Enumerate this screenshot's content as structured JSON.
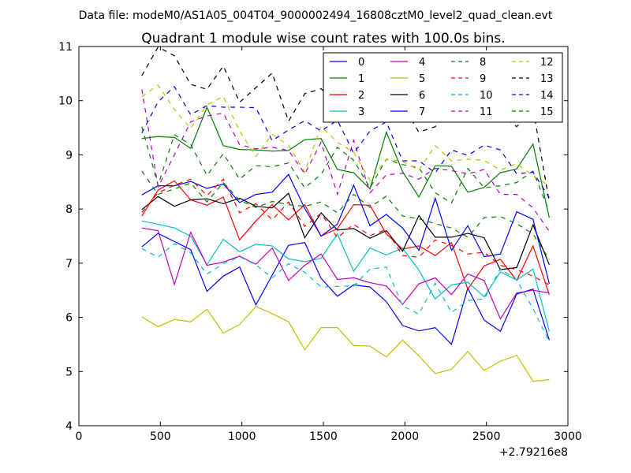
{
  "figure": {
    "suptitle": "Data file: modeM0/AS1A05_004T04_9000002494_16808cztM0_level2_quad_clean.evt"
  },
  "chart_data": {
    "type": "line",
    "title": "Quadrant 1 module wise count rates with 100.0s bins.",
    "xlabel": "",
    "ylabel": "",
    "xlim": [
      0,
      3000
    ],
    "ylim": [
      4,
      11
    ],
    "x_offset_label": "+2.79216e8",
    "xticks": [
      "0",
      "500",
      "1000",
      "1500",
      "2000",
      "2500",
      "3000"
    ],
    "yticks": [
      "4",
      "5",
      "6",
      "7",
      "8",
      "9",
      "10",
      "11"
    ],
    "grid": false,
    "legend_position": "top-right",
    "legend_columns": 4,
    "x": [
      386,
      486,
      586,
      686,
      786,
      886,
      986,
      1086,
      1186,
      1286,
      1386,
      1486,
      1586,
      1686,
      1786,
      1886,
      1986,
      2086,
      2186,
      2286,
      2386,
      2486,
      2586,
      2686,
      2786,
      2886
    ],
    "series": [
      {
        "name": "0",
        "color": "#0000ff",
        "dash": "solid",
        "values": [
          7.3,
          7.55,
          7.4,
          7.25,
          6.48,
          6.76,
          6.93,
          6.23,
          6.78,
          7.33,
          7.38,
          6.72,
          6.39,
          6.6,
          6.56,
          6.29,
          5.85,
          5.75,
          5.81,
          5.5,
          6.54,
          5.95,
          5.74,
          6.43,
          6.52,
          5.58
        ]
      },
      {
        "name": "1",
        "color": "#008000",
        "dash": "solid",
        "values": [
          9.3,
          9.34,
          9.32,
          9.12,
          9.88,
          9.17,
          9.1,
          9.09,
          9.07,
          9.08,
          9.28,
          9.3,
          8.73,
          8.67,
          8.37,
          9.42,
          8.69,
          8.22,
          8.8,
          8.79,
          8.31,
          8.4,
          8.67,
          8.74,
          9.2,
          7.84
        ]
      },
      {
        "name": "2",
        "color": "#ff0000",
        "dash": "solid",
        "values": [
          7.87,
          8.35,
          8.52,
          8.17,
          8.07,
          8.22,
          7.43,
          7.78,
          8.08,
          7.8,
          8.08,
          7.5,
          7.64,
          8.08,
          8.07,
          7.54,
          7.26,
          7.32,
          7.14,
          7.38,
          6.52,
          6.95,
          7.07,
          6.68,
          7.32,
          6.42
        ]
      },
      {
        "name": "3",
        "color": "#00bfbf",
        "dash": "solid",
        "values": [
          7.78,
          7.72,
          7.65,
          7.5,
          6.97,
          7.44,
          7.21,
          7.35,
          7.32,
          7.08,
          7.03,
          7.09,
          7.54,
          6.85,
          7.28,
          7.15,
          7.28,
          6.87,
          6.34,
          6.6,
          6.65,
          6.38,
          6.84,
          6.69,
          6.89,
          5.74
        ]
      },
      {
        "name": "4",
        "color": "#bf00bf",
        "dash": "solid",
        "values": [
          7.65,
          7.6,
          6.61,
          7.57,
          6.96,
          7.02,
          7.13,
          6.98,
          7.28,
          6.68,
          6.96,
          7.17,
          6.7,
          6.73,
          6.64,
          6.58,
          6.24,
          6.62,
          6.73,
          6.42,
          6.8,
          6.68,
          5.97,
          6.45,
          6.5,
          6.45
        ]
      },
      {
        "name": "5",
        "color": "#bfbf00",
        "dash": "solid",
        "values": [
          6.01,
          5.83,
          5.96,
          5.92,
          6.15,
          5.71,
          5.87,
          6.2,
          6.07,
          5.92,
          5.4,
          5.81,
          5.81,
          5.48,
          5.47,
          5.27,
          5.58,
          5.29,
          4.96,
          5.04,
          5.37,
          5.02,
          5.19,
          5.3,
          4.82,
          4.85
        ]
      },
      {
        "name": "6",
        "color": "#000000",
        "dash": "solid",
        "values": [
          7.99,
          8.23,
          8.05,
          8.17,
          8.19,
          8.1,
          8.2,
          8.05,
          8.02,
          8.29,
          7.47,
          7.93,
          7.61,
          7.64,
          7.46,
          7.6,
          7.22,
          7.88,
          7.48,
          7.48,
          7.55,
          7.47,
          6.88,
          6.92,
          7.71,
          6.97
        ]
      },
      {
        "name": "7",
        "color": "#0000ff",
        "dash": "solid",
        "values": [
          8.26,
          8.43,
          8.43,
          8.51,
          8.38,
          8.46,
          8.12,
          8.27,
          8.31,
          8.64,
          8.01,
          7.5,
          7.72,
          8.44,
          7.69,
          7.9,
          7.65,
          7.24,
          8.2,
          7.24,
          7.69,
          7.12,
          7.17,
          7.95,
          7.81,
          6.62
        ]
      },
      {
        "name": "8",
        "color": "#008000",
        "dash": "dashed",
        "values": [
          9.52,
          8.44,
          9.37,
          9.19,
          8.62,
          9.02,
          8.55,
          8.8,
          8.78,
          8.85,
          8.39,
          8.64,
          9.14,
          8.9,
          8.39,
          8.92,
          8.82,
          8.76,
          8.3,
          8.11,
          8.75,
          8.39,
          8.43,
          8.49,
          8.7,
          7.95
        ]
      },
      {
        "name": "9",
        "color": "#ff0000",
        "dash": "dashed",
        "values": [
          7.94,
          8.3,
          8.44,
          8.55,
          8.25,
          8.55,
          7.93,
          8.1,
          7.8,
          8.13,
          7.68,
          7.92,
          7.47,
          7.72,
          7.51,
          7.62,
          7.14,
          7.11,
          7.43,
          7.33,
          7.17,
          7.2,
          6.96,
          6.88,
          6.76,
          6.6
        ]
      },
      {
        "name": "10",
        "color": "#00bfbf",
        "dash": "dashed",
        "values": [
          7.27,
          7.11,
          7.36,
          7.19,
          6.8,
          6.99,
          7.12,
          6.97,
          6.73,
          6.99,
          6.83,
          6.56,
          6.57,
          6.58,
          6.89,
          6.93,
          6.21,
          6.06,
          6.63,
          6.09,
          6.31,
          6.34,
          6.9,
          6.69,
          6.16,
          5.55
        ]
      },
      {
        "name": "11",
        "color": "#bf00bf",
        "dash": "dashed",
        "values": [
          10.21,
          8.41,
          9.0,
          9.61,
          9.72,
          9.77,
          9.19,
          9.11,
          9.14,
          9.08,
          8.65,
          9.23,
          8.27,
          9.27,
          8.3,
          8.63,
          8.66,
          8.55,
          8.75,
          8.71,
          8.65,
          8.73,
          8.27,
          8.27,
          8.02,
          7.59
        ]
      },
      {
        "name": "12",
        "color": "#bfbf00",
        "dash": "dashed",
        "values": [
          10.07,
          10.29,
          9.84,
          9.49,
          9.92,
          10.08,
          9.44,
          8.97,
          9.38,
          9.18,
          8.68,
          9.53,
          9.23,
          9.05,
          8.53,
          8.92,
          8.88,
          8.72,
          9.17,
          8.89,
          8.92,
          8.9,
          8.72,
          8.84,
          8.61,
          8.43
        ]
      },
      {
        "name": "13",
        "color": "#000000",
        "dash": "dashed",
        "values": [
          10.46,
          10.99,
          10.83,
          10.3,
          10.21,
          10.64,
          9.97,
          10.24,
          10.51,
          9.62,
          10.13,
          10.22,
          9.93,
          9.95,
          9.85,
          10.53,
          9.92,
          9.42,
          9.52,
          9.97,
          10.01,
          10.16,
          9.74,
          9.52,
          9.86,
          8.13
        ]
      },
      {
        "name": "14",
        "color": "#0000ff",
        "dash": "dashed",
        "values": [
          9.4,
          9.98,
          10.26,
          9.74,
          9.91,
          9.88,
          9.88,
          9.87,
          9.26,
          9.46,
          9.63,
          9.44,
          9.64,
          9.03,
          9.44,
          9.61,
          8.89,
          8.89,
          8.67,
          9.09,
          8.99,
          9.18,
          9.09,
          8.65,
          8.68,
          8.21
        ]
      },
      {
        "name": "15",
        "color": "#008000",
        "dash": "dashed",
        "values": [
          8.7,
          8.27,
          8.37,
          8.48,
          8.13,
          8.49,
          8.16,
          8.03,
          8.14,
          8.08,
          8.05,
          8.13,
          7.93,
          8.27,
          8.03,
          8.24,
          7.87,
          7.82,
          7.73,
          7.65,
          7.48,
          7.84,
          7.86,
          7.73,
          7.54,
          7.07
        ]
      }
    ]
  }
}
